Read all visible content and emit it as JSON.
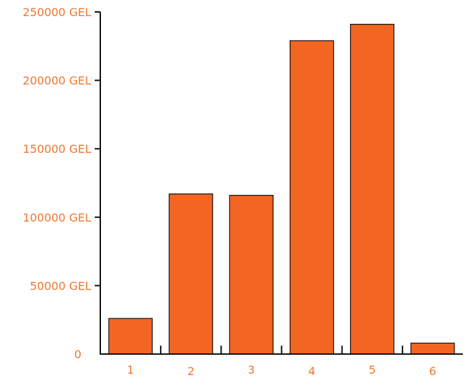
{
  "chart_data": {
    "type": "bar",
    "categories": [
      "1",
      "2",
      "3",
      "4",
      "5",
      "6"
    ],
    "values": [
      26000,
      117000,
      116000,
      229000,
      241000,
      8000
    ],
    "ylim": [
      0,
      250000
    ],
    "y_ticks": [
      0,
      50000,
      100000,
      150000,
      200000,
      250000
    ],
    "y_tick_labels": [
      "0",
      "50000 GEL",
      "100000 GEL",
      "150000 GEL",
      "200000 GEL",
      "250000 GEL"
    ],
    "title": "",
    "xlabel": "",
    "ylabel": "",
    "grid": false,
    "colors": {
      "bar": "#f26522",
      "text": "#f0762f",
      "axis": "#111111"
    }
  }
}
